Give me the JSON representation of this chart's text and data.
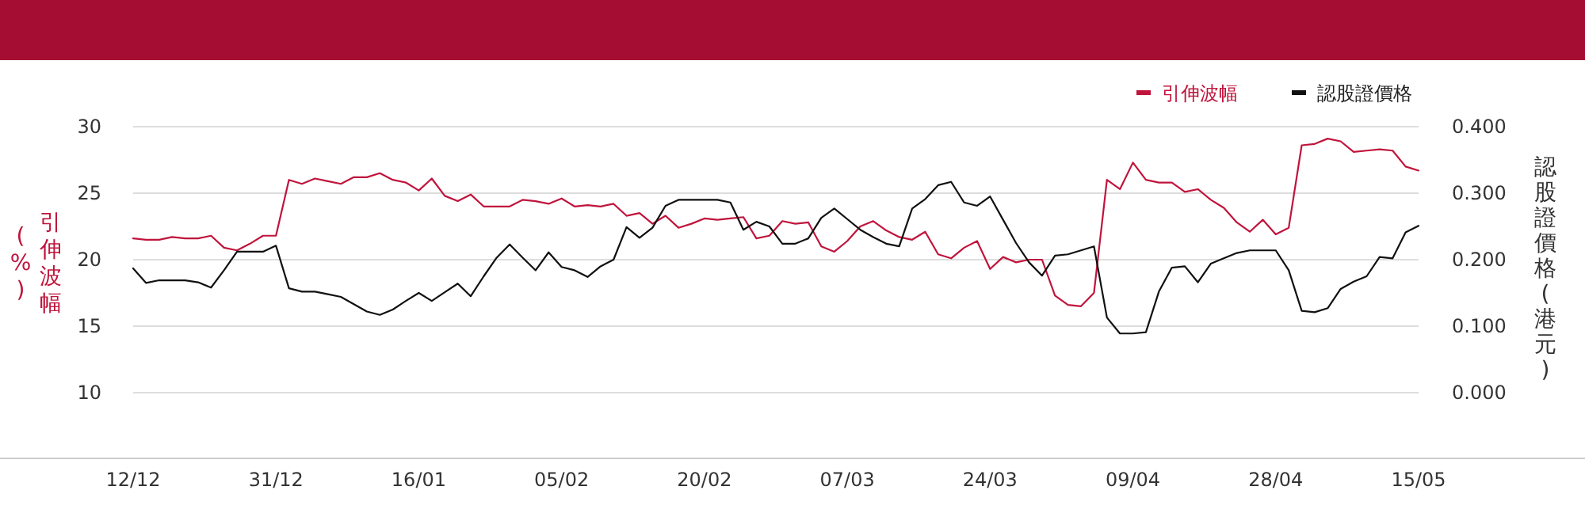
{
  "chart_data": {
    "type": "line",
    "categories": [
      "12/12",
      null,
      null,
      null,
      null,
      null,
      null,
      null,
      null,
      null,
      null,
      "31/12",
      null,
      null,
      null,
      null,
      null,
      null,
      null,
      null,
      null,
      null,
      "16/01",
      null,
      null,
      null,
      null,
      null,
      null,
      null,
      null,
      null,
      null,
      "05/02",
      null,
      null,
      null,
      null,
      null,
      null,
      null,
      null,
      null,
      null,
      "20/02",
      null,
      null,
      null,
      null,
      null,
      null,
      null,
      null,
      null,
      null,
      "07/03",
      null,
      null,
      null,
      null,
      null,
      null,
      null,
      null,
      null,
      null,
      "24/03",
      null,
      null,
      null,
      null,
      null,
      null,
      null,
      null,
      null,
      null,
      "09/04",
      null,
      null,
      null,
      null,
      null,
      null,
      null,
      null,
      null,
      null,
      "28/04",
      null,
      null,
      null,
      null,
      null,
      null,
      null,
      null,
      null,
      null,
      "15/05"
    ],
    "ylabel": "引伸波幅 (%)",
    "y2label": "認股證價格 (港元)",
    "ylim": [
      5,
      30
    ],
    "yticks": [
      10,
      15,
      20,
      25,
      30
    ],
    "y2lim": [
      -0.1,
      0.4
    ],
    "y2ticks": [
      {
        "value": 0,
        "label": "0.000"
      },
      {
        "value": 0.1,
        "label": "0.100"
      },
      {
        "value": 0.2,
        "label": "0.200"
      },
      {
        "value": 0.3,
        "label": "0.300"
      },
      {
        "value": 0.4,
        "label": "0.400"
      }
    ],
    "grid": "y",
    "legend": "top right",
    "series": [
      {
        "name": "引伸波幅",
        "color": "#c0143c",
        "values": [
          21.6,
          21.5,
          21.5,
          21.7,
          21.6,
          21.6,
          21.8,
          20.9,
          20.7,
          21.2,
          21.8,
          21.8,
          26.0,
          25.7,
          26.1,
          25.9,
          25.7,
          26.2,
          26.2,
          26.5,
          26.0,
          25.8,
          25.2,
          26.1,
          24.8,
          24.4,
          24.9,
          24.0,
          24.0,
          24.0,
          24.5,
          24.4,
          24.2,
          24.6,
          24.0,
          24.1,
          24.0,
          24.2,
          23.3,
          23.5,
          22.7,
          23.3,
          22.4,
          22.7,
          23.1,
          23.0,
          23.1,
          23.2,
          21.6,
          21.8,
          22.9,
          22.7,
          22.8,
          21.0,
          20.6,
          21.4,
          22.5,
          22.9,
          22.2,
          21.7,
          21.5,
          22.1,
          20.4,
          20.1,
          20.9,
          21.4,
          19.3,
          20.2,
          19.8,
          20.0,
          20.0,
          17.3,
          16.6,
          16.5,
          17.5,
          26.0,
          25.3,
          27.3,
          26.0,
          25.8,
          25.8,
          25.1,
          25.3,
          24.5,
          23.9,
          22.8,
          22.1,
          23.0,
          21.9,
          22.4,
          28.6,
          28.7,
          29.1,
          28.9,
          28.1,
          28.2,
          28.3,
          28.2,
          27.0,
          26.7
        ]
      },
      {
        "name": "認股證價格",
        "color": "#111111",
        "axis": "y2",
        "values": [
          0.187,
          0.165,
          0.169,
          0.169,
          0.169,
          0.166,
          0.158,
          0.184,
          0.212,
          0.212,
          0.212,
          0.221,
          0.157,
          0.152,
          0.152,
          0.148,
          0.144,
          0.133,
          0.122,
          0.117,
          0.125,
          0.138,
          0.15,
          0.138,
          0.151,
          0.164,
          0.145,
          0.175,
          0.203,
          0.223,
          0.203,
          0.184,
          0.211,
          0.189,
          0.184,
          0.174,
          0.19,
          0.2,
          0.249,
          0.233,
          0.248,
          0.281,
          0.29,
          0.29,
          0.29,
          0.29,
          0.286,
          0.245,
          0.257,
          0.25,
          0.224,
          0.224,
          0.232,
          0.263,
          0.277,
          0.261,
          0.245,
          0.234,
          0.224,
          0.22,
          0.277,
          0.291,
          0.312,
          0.317,
          0.286,
          0.281,
          0.295,
          0.26,
          0.225,
          0.196,
          0.176,
          0.206,
          0.208,
          0.214,
          0.22,
          0.113,
          0.089,
          0.089,
          0.091,
          0.152,
          0.188,
          0.19,
          0.166,
          0.194,
          0.202,
          0.21,
          0.214,
          0.214,
          0.214,
          0.184,
          0.123,
          0.121,
          0.127,
          0.156,
          0.167,
          0.175,
          0.204,
          0.202,
          0.241,
          0.251
        ]
      }
    ]
  }
}
